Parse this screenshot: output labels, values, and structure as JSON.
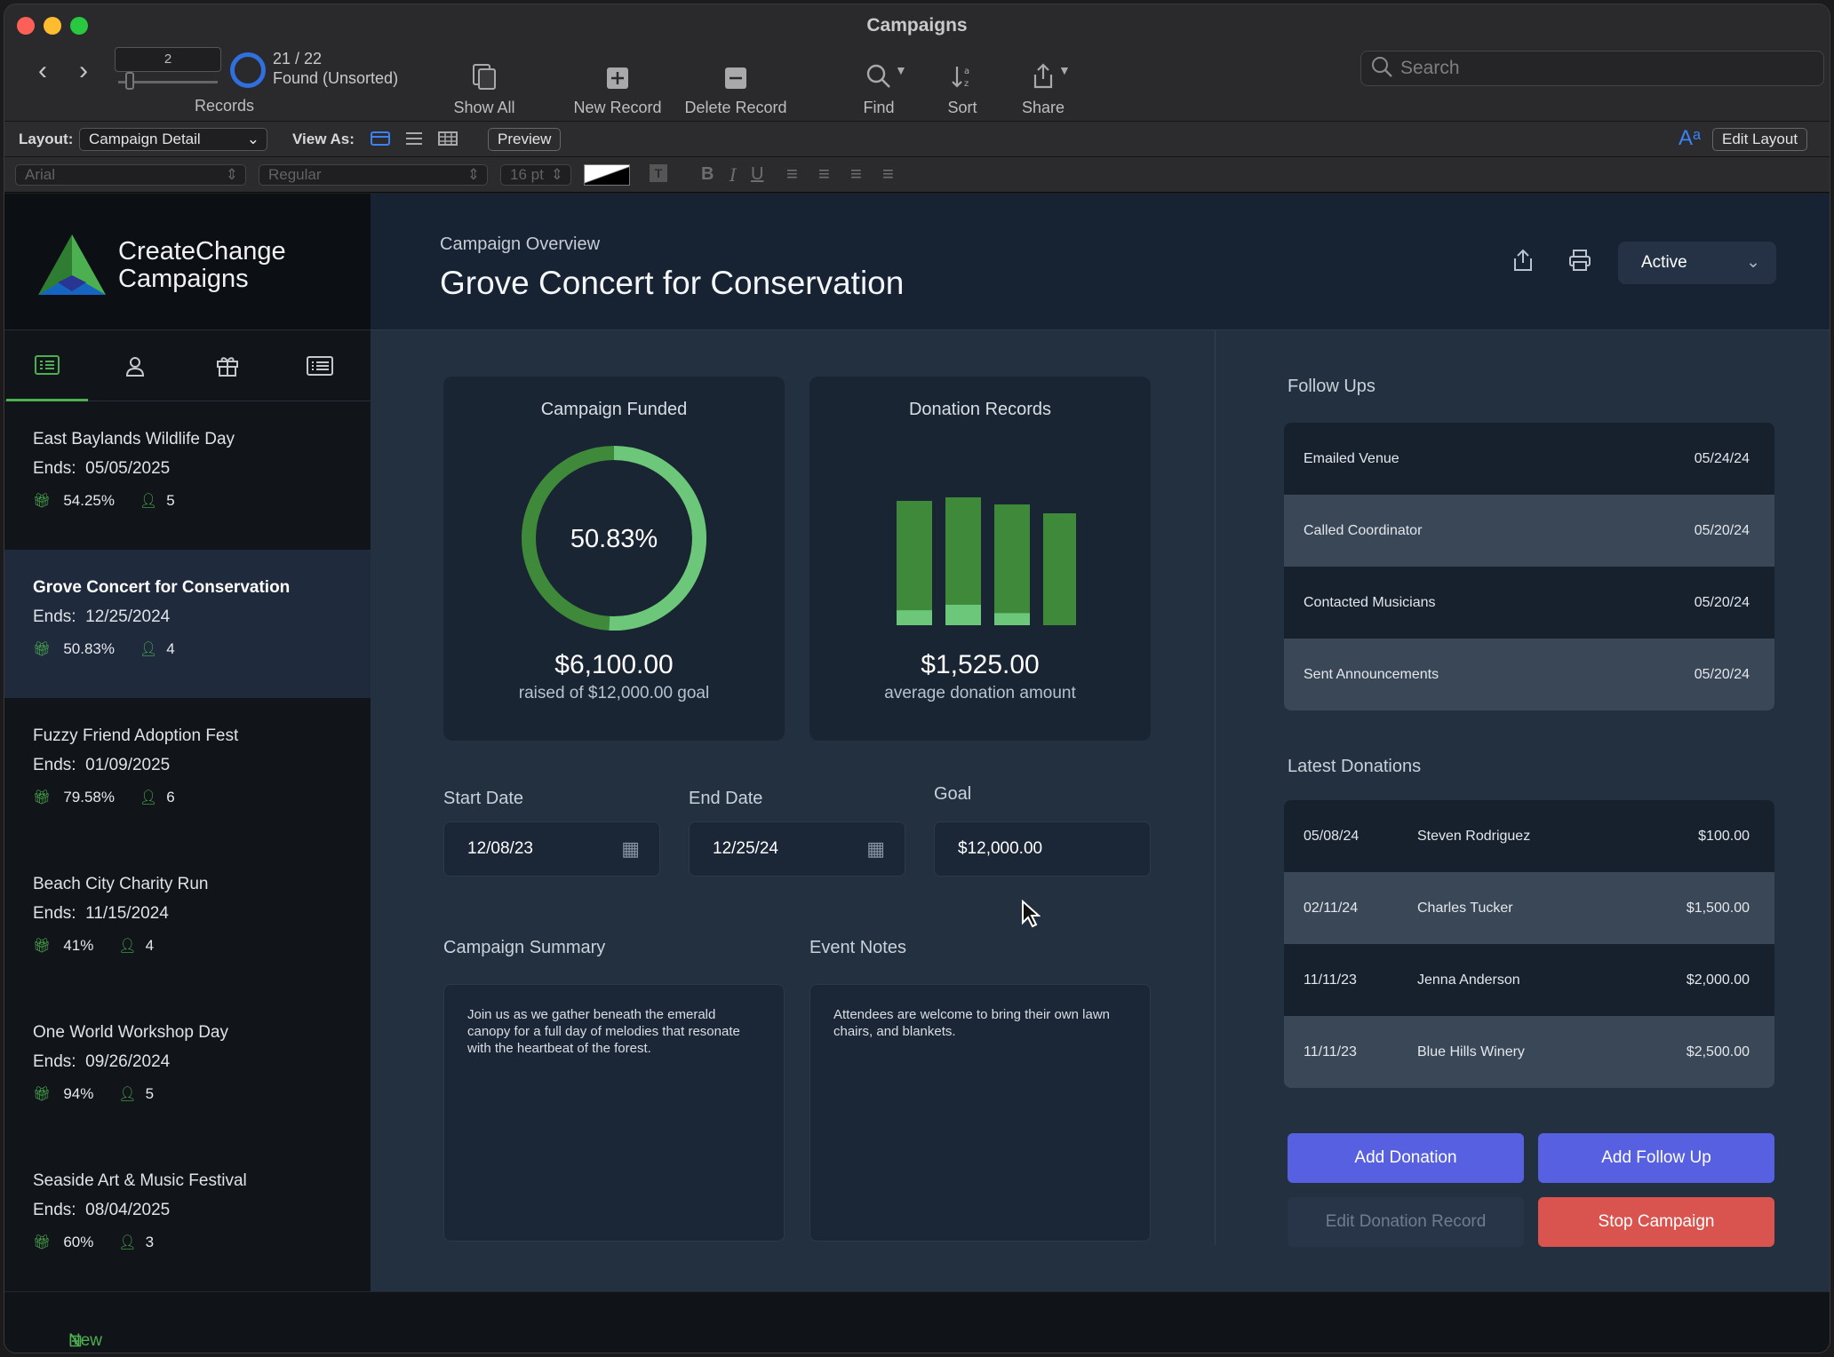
{
  "window": {
    "title": "Campaigns"
  },
  "toolbar": {
    "record_number": "2",
    "records_label": "Records",
    "found_count": "21 / 22",
    "found_state": "Found (Unsorted)",
    "show_all": "Show All",
    "new_record": "New Record",
    "delete_record": "Delete Record",
    "find": "Find",
    "sort": "Sort",
    "share": "Share",
    "search_placeholder": "Search"
  },
  "layoutbar": {
    "layout_label": "Layout:",
    "layout_value": "Campaign Detail",
    "view_as_label": "View As:",
    "preview": "Preview",
    "edit_layout": "Edit Layout"
  },
  "formatbar": {
    "font": "Arial",
    "style": "Regular",
    "size": "16 pt"
  },
  "brand": {
    "line1": "CreateChange",
    "line2": "Campaigns",
    "colors": [
      "#2e7d32",
      "#4caf50",
      "#1e88e5"
    ]
  },
  "campaigns": [
    {
      "name": "East Baylands Wildlife Day",
      "ends": "05/05/2025",
      "funded": "54.25%",
      "people": "5"
    },
    {
      "name": "Grove Concert for Conservation",
      "ends": "12/25/2024",
      "funded": "50.83%",
      "people": "4"
    },
    {
      "name": "Fuzzy Friend Adoption Fest",
      "ends": "01/09/2025",
      "funded": "79.58%",
      "people": "6"
    },
    {
      "name": "Beach City Charity Run",
      "ends": "11/15/2024",
      "funded": "41%",
      "people": "4"
    },
    {
      "name": "One World Workshop Day",
      "ends": "09/26/2024",
      "funded": "94%",
      "people": "5"
    },
    {
      "name": "Seaside Art & Music Festival",
      "ends": "08/04/2025",
      "funded": "60%",
      "people": "3"
    }
  ],
  "ends_label": "Ends:",
  "new_campaign": "New Campaign",
  "header": {
    "subtitle": "Campaign Overview",
    "title": "Grove Concert for Conservation",
    "status": "Active"
  },
  "funded_card": {
    "title": "Campaign Funded",
    "percent_text": "50.83%",
    "percent": 0.5083,
    "amount": "$6,100.00",
    "caption": "raised of $12,000.00 goal"
  },
  "donation_card": {
    "title": "Donation Records",
    "amount": "$1,525.00",
    "caption": "average donation amount"
  },
  "chart_data": {
    "type": "bar",
    "series": [
      {
        "values": [
          100,
          100,
          100,
          100
        ]
      },
      {
        "values": [
          12,
          16,
          10,
          0
        ]
      }
    ],
    "colors": [
      "#3f8a3a",
      "#6dc77a"
    ]
  },
  "fields": {
    "start_label": "Start Date",
    "start_value": "12/08/23",
    "end_label": "End Date",
    "end_value": "12/25/24",
    "goal_label": "Goal",
    "goal_value": "$12,000.00"
  },
  "summary": {
    "label": "Campaign Summary",
    "text": "Join us as we gather beneath the emerald canopy for a full day of melodies that resonate with the heartbeat of the forest."
  },
  "notes": {
    "label": "Event Notes",
    "text": "Attendees are welcome to bring their own lawn chairs, and blankets."
  },
  "followups": {
    "label": "Follow Ups",
    "items": [
      {
        "task": "Emailed Venue",
        "date": "05/24/24"
      },
      {
        "task": "Called Coordinator",
        "date": "05/20/24"
      },
      {
        "task": "Contacted Musicians",
        "date": "05/20/24"
      },
      {
        "task": "Sent Announcements",
        "date": "05/20/24"
      }
    ]
  },
  "donations": {
    "label": "Latest Donations",
    "items": [
      {
        "date": "05/08/24",
        "name": "Steven Rodriguez",
        "amount": "$100.00"
      },
      {
        "date": "02/11/24",
        "name": "Charles Tucker",
        "amount": "$1,500.00"
      },
      {
        "date": "11/11/23",
        "name": "Jenna Anderson",
        "amount": "$2,000.00"
      },
      {
        "date": "11/11/23",
        "name": "Blue Hills Winery",
        "amount": "$2,500.00"
      }
    ]
  },
  "actions": {
    "add_donation": "Add Donation",
    "add_followup": "Add Follow Up",
    "edit_donation": "Edit Donation Record",
    "stop_campaign": "Stop Campaign"
  }
}
